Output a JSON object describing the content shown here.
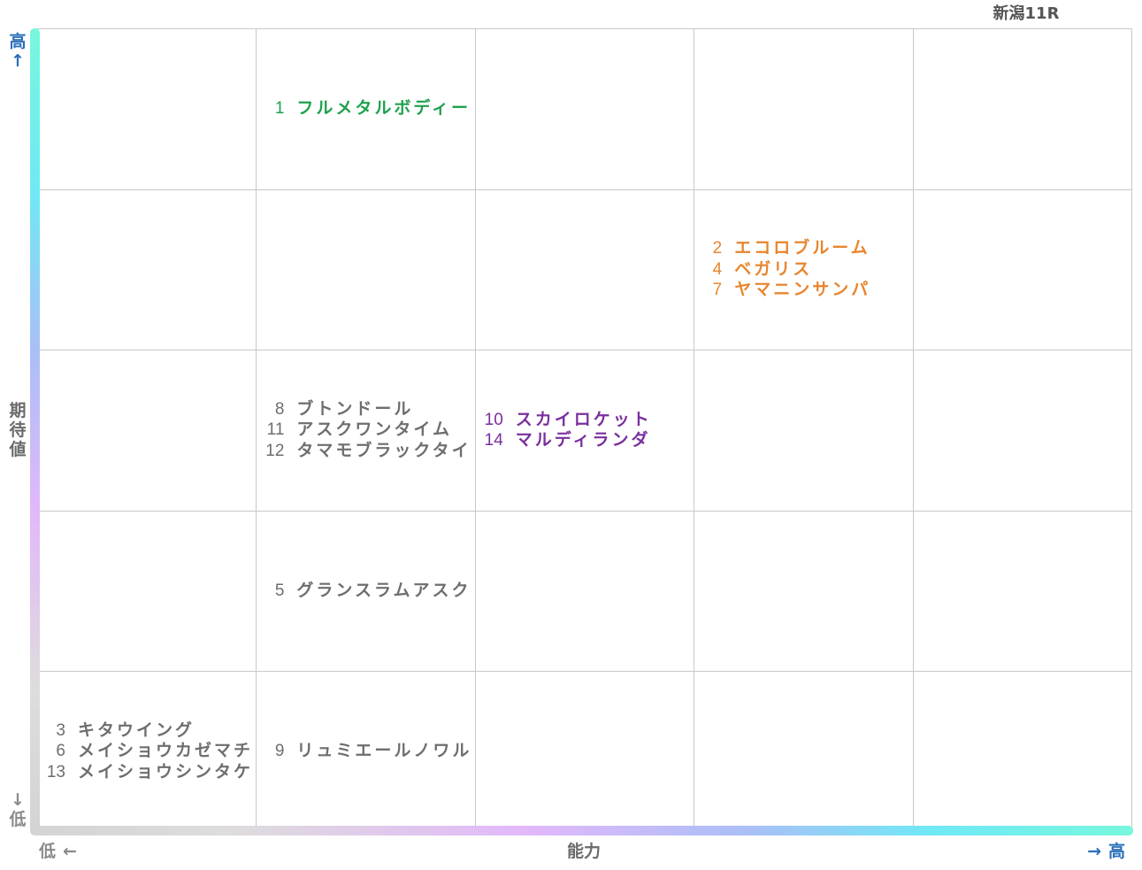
{
  "header": {
    "race_title": "新潟11R"
  },
  "axes": {
    "y": {
      "high_char": "高",
      "up_arrow": "↑",
      "label": "期待値",
      "down_arrow": "↓",
      "low_char": "低"
    },
    "x": {
      "low_char": "低",
      "left_arrow": "←",
      "label": "能力",
      "right_arrow": "→",
      "high_char": "高"
    }
  },
  "colors": {
    "green": "#1fa04e",
    "orange": "#e8852e",
    "purple": "#7a2f9e",
    "gray": "#6e6e6e"
  },
  "chart_data": {
    "type": "table",
    "title": "新潟11R",
    "xlabel": "能力",
    "ylabel": "期待値",
    "x_range": [
      "低",
      "高"
    ],
    "y_range": [
      "低",
      "高"
    ],
    "columns": 5,
    "rows": 5,
    "grid": true,
    "cells": [
      {
        "col": 2,
        "row": 1,
        "color": "green",
        "horses": [
          {
            "num": "1",
            "name": "フルメタルボディー"
          }
        ]
      },
      {
        "col": 4,
        "row": 2,
        "color": "orange",
        "horses": [
          {
            "num": "2",
            "name": "エコロブルーム"
          },
          {
            "num": "4",
            "name": "ベガリス"
          },
          {
            "num": "7",
            "name": "ヤマニンサンパ"
          }
        ]
      },
      {
        "col": 2,
        "row": 3,
        "color": "gray",
        "horses": [
          {
            "num": "8",
            "name": "ブトンドール"
          },
          {
            "num": "11",
            "name": "アスクワンタイム"
          },
          {
            "num": "12",
            "name": "タマモブラックタイ"
          }
        ]
      },
      {
        "col": 3,
        "row": 3,
        "color": "purple",
        "horses": [
          {
            "num": "10",
            "name": "スカイロケット"
          },
          {
            "num": "14",
            "name": "マルディランダ"
          }
        ]
      },
      {
        "col": 2,
        "row": 4,
        "color": "gray",
        "horses": [
          {
            "num": "5",
            "name": "グランスラムアスク"
          }
        ]
      },
      {
        "col": 1,
        "row": 5,
        "color": "gray",
        "horses": [
          {
            "num": "3",
            "name": "キタウイング"
          },
          {
            "num": "6",
            "name": "メイショウカゼマチ"
          },
          {
            "num": "13",
            "name": "メイショウシンタケ"
          }
        ]
      },
      {
        "col": 2,
        "row": 5,
        "color": "gray",
        "horses": [
          {
            "num": "9",
            "name": "リュミエールノワル"
          }
        ]
      }
    ]
  }
}
